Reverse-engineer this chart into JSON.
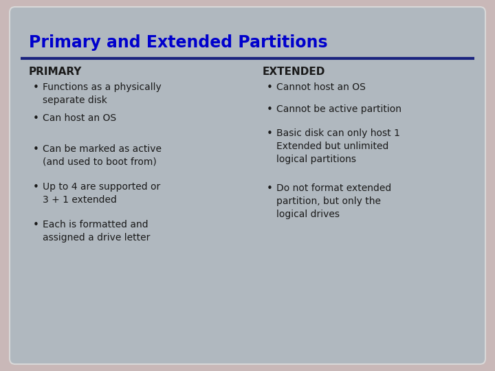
{
  "title": "Primary and Extended Partitions",
  "title_color": "#0000cc",
  "title_fontsize": 17,
  "background_outer": "#c9b8b8",
  "background_inner": "#b0b8bf",
  "separator_color": "#1a237e",
  "col1_header": "PRIMARY",
  "col2_header": "EXTENDED",
  "header_color": "#1a1a1a",
  "header_fontsize": 11,
  "col1_bullets": [
    "Functions as a physically\nseparate disk",
    "Can host an OS",
    "Can be marked as active\n(and used to boot from)",
    "Up to 4 are supported or\n3 + 1 extended",
    "Each is formatted and\nassigned a drive letter"
  ],
  "col2_bullets": [
    "Cannot host an OS",
    "Cannot be active partition",
    "Basic disk can only host 1\nExtended but unlimited\nlogical partitions",
    "Do not format extended\npartition, but only the\nlogical drives"
  ],
  "bullet_color": "#1a1a1a",
  "bullet_fontsize": 10,
  "bullet_char": "•"
}
